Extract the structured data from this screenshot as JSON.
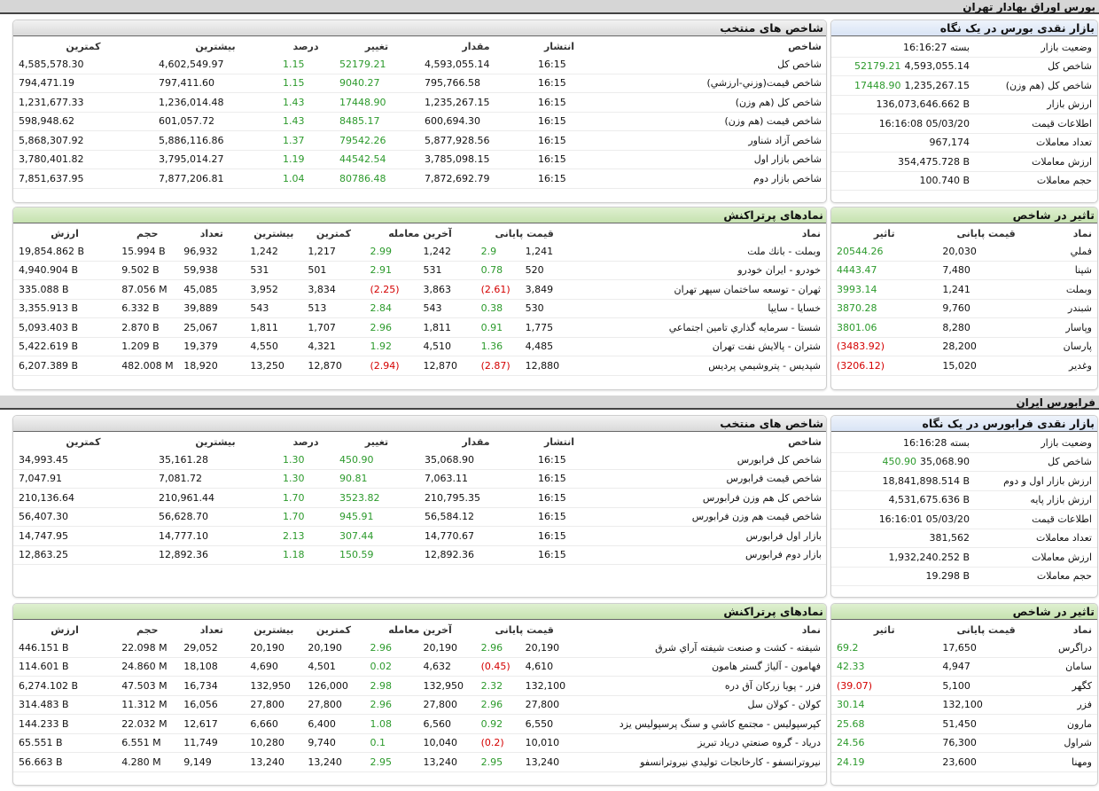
{
  "sections": [
    {
      "title": "بورس اوراق بهادار تهران",
      "glance": {
        "title": "بازار نقدی بورس در یک نگاه",
        "rows": [
          [
            "وضعیت بازار",
            "بسته 16:16:27"
          ],
          [
            "شاخص کل",
            "4,593,055.14",
            "52179.21"
          ],
          [
            "شاخص کل (هم وزن)",
            "1,235,267.15",
            "17448.90"
          ],
          [
            "ارزش بازار",
            "136,073,646.662 B"
          ],
          [
            "اطلاعات قیمت",
            "16:16:08 05/03/20"
          ],
          [
            "تعداد معاملات",
            "967,174"
          ],
          [
            "ارزش معاملات",
            "354,475.728 B"
          ],
          [
            "حجم معاملات",
            "100.740 B"
          ]
        ]
      },
      "indices": {
        "title": "شاخص های منتخب",
        "headers": [
          "شاخص",
          "انتشار",
          "مقدار",
          "تغییر",
          "درصد",
          "بیشترین",
          "کمترین"
        ],
        "rows": [
          [
            "شاخص کل",
            "16:15",
            "4,593,055.14",
            "52179.21",
            "1.15",
            "4,602,549.97",
            "4,585,578.30"
          ],
          [
            "شاخص قیمت(وزني-ارزشي)",
            "16:15",
            "795,766.58",
            "9040.27",
            "1.15",
            "797,411.60",
            "794,471.19"
          ],
          [
            "شاخص کل (هم وزن)",
            "16:15",
            "1,235,267.15",
            "17448.90",
            "1.43",
            "1,236,014.48",
            "1,231,677.33"
          ],
          [
            "شاخص قیمت (هم وزن)",
            "16:15",
            "600,694.30",
            "8485.17",
            "1.43",
            "601,057.72",
            "598,948.62"
          ],
          [
            "شاخص آزاد شناور",
            "16:15",
            "5,877,928.56",
            "79542.26",
            "1.37",
            "5,886,116.86",
            "5,868,307.92"
          ],
          [
            "شاخص بازار اول",
            "16:15",
            "3,785,098.15",
            "44542.54",
            "1.19",
            "3,795,014.27",
            "3,780,401.82"
          ],
          [
            "شاخص بازار دوم",
            "16:15",
            "7,872,692.79",
            "80786.48",
            "1.04",
            "7,877,206.81",
            "7,851,637.95"
          ]
        ]
      },
      "impact": {
        "title": "تاثیر در شاخص",
        "headers": [
          "نماد",
          "قیمت پایانی",
          "تاثیر"
        ],
        "rows": [
          [
            "فملي",
            "20,030",
            "20544.26"
          ],
          [
            "شپنا",
            "7,480",
            "4443.47"
          ],
          [
            "وبملت",
            "1,241",
            "3993.14"
          ],
          [
            "شبندر",
            "9,760",
            "3870.28"
          ],
          [
            "وپاسار",
            "8,280",
            "3801.06"
          ],
          [
            "پارسان",
            "28,200",
            "(3483.92)"
          ],
          [
            "وغدير",
            "15,020",
            "(3206.12)"
          ]
        ]
      },
      "traded": {
        "title": "نمادهای پرتراکنش",
        "headers": [
          "نماد",
          "قیمت پایانی",
          "آخرین معامله",
          "کمترین",
          "بیشترین",
          "تعداد",
          "حجم",
          "ارزش"
        ],
        "rows": [
          [
            "وبملت - بانك ملت",
            "1,241",
            "2.9",
            "1,242",
            "2.99",
            "1,217",
            "1,242",
            "96,932",
            "15.994 B",
            "19,854.862 B"
          ],
          [
            "خودرو - ايران خودرو",
            "520",
            "0.78",
            "531",
            "2.91",
            "501",
            "531",
            "59,938",
            "9.502 B",
            "4,940.904 B"
          ],
          [
            "ثهران - توسعه ساختمان سپهر تهران",
            "3,849",
            "(2.61)",
            "3,863",
            "(2.25)",
            "3,834",
            "3,952",
            "45,085",
            "87.056 M",
            "335.088 B"
          ],
          [
            "خسايا - سايپا",
            "530",
            "0.38",
            "543",
            "2.84",
            "513",
            "543",
            "39,889",
            "6.332 B",
            "3,355.913 B"
          ],
          [
            "شستا - سرمايه گذاري تامين اجتماعي",
            "1,775",
            "0.91",
            "1,811",
            "2.96",
            "1,707",
            "1,811",
            "25,067",
            "2.870 B",
            "5,093.403 B"
          ],
          [
            "شتران - پالايش نفت تهران",
            "4,485",
            "1.36",
            "4,510",
            "1.92",
            "4,321",
            "4,550",
            "19,379",
            "1.209 B",
            "5,422.619 B"
          ],
          [
            "شپديس - پتروشيمي پرديس",
            "12,880",
            "(2.87)",
            "12,870",
            "(2.94)",
            "12,870",
            "13,250",
            "18,920",
            "482.008 M",
            "6,207.389 B"
          ]
        ]
      }
    },
    {
      "title": "فرابورس ایران",
      "glance": {
        "title": "بازار نقدی فرابورس در یک نگاه",
        "rows": [
          [
            "وضعیت بازار",
            "بسته 16:16:28"
          ],
          [
            "شاخص کل",
            "35,068.90",
            "450.90"
          ],
          [
            "ارزش بازار اول و دوم",
            "18,841,898.514 B"
          ],
          [
            "ارزش بازار پایه",
            "4,531,675.636 B"
          ],
          [
            "اطلاعات قیمت",
            "16:16:01 05/03/20"
          ],
          [
            "تعداد معاملات",
            "381,562"
          ],
          [
            "ارزش معاملات",
            "1,932,240.252 B"
          ],
          [
            "حجم معاملات",
            "19.298 B"
          ]
        ]
      },
      "indices": {
        "title": "شاخص های منتخب",
        "headers": [
          "شاخص",
          "انتشار",
          "مقدار",
          "تغییر",
          "درصد",
          "بیشترین",
          "کمترین"
        ],
        "rows": [
          [
            "شاخص کل فرابورس",
            "16:15",
            "35,068.90",
            "450.90",
            "1.30",
            "35,161.28",
            "34,993.45"
          ],
          [
            "شاخص قیمت فرابورس",
            "16:15",
            "7,063.11",
            "90.81",
            "1.30",
            "7,081.72",
            "7,047.91"
          ],
          [
            "شاخص کل هم وزن فرابورس",
            "16:15",
            "210,795.35",
            "3523.82",
            "1.70",
            "210,961.44",
            "210,136.64"
          ],
          [
            "شاخص قیمت هم وزن فرابورس",
            "16:15",
            "56,584.12",
            "945.91",
            "1.70",
            "56,628.70",
            "56,407.30"
          ],
          [
            "بازار اول فرابورس",
            "16:15",
            "14,770.67",
            "307.44",
            "2.13",
            "14,777.10",
            "14,747.95"
          ],
          [
            "بازار دوم فرابورس",
            "16:15",
            "12,892.36",
            "150.59",
            "1.18",
            "12,892.36",
            "12,863.25"
          ]
        ]
      },
      "impact": {
        "title": "تاثیر در شاخص",
        "headers": [
          "نماد",
          "قیمت پایانی",
          "تاثیر"
        ],
        "rows": [
          [
            "دراگرس",
            "17,650",
            "69.2"
          ],
          [
            "سامان",
            "4,947",
            "42.33"
          ],
          [
            "كگهر",
            "5,100",
            "(39.07)"
          ],
          [
            "فزر",
            "132,100",
            "30.14"
          ],
          [
            "مارون",
            "51,450",
            "25.68"
          ],
          [
            "شراول",
            "76,300",
            "24.56"
          ],
          [
            "ومهنا",
            "23,600",
            "24.19"
          ]
        ]
      },
      "traded": {
        "title": "نمادهای پرتراکنش",
        "headers": [
          "نماد",
          "قیمت پایانی",
          "آخرین معامله",
          "کمترین",
          "بیشترین",
          "تعداد",
          "حجم",
          "ارزش"
        ],
        "rows": [
          [
            "شيفته - كشت و صنعت شيفته آراي شرق",
            "20,190",
            "2.96",
            "20,190",
            "2.96",
            "20,190",
            "20,190",
            "29,052",
            "22.098 M",
            "446.151 B"
          ],
          [
            "فهامون - آلياژ گستر هامون",
            "4,610",
            "(0.45)",
            "4,632",
            "0.02",
            "4,501",
            "4,690",
            "18,108",
            "24.860 M",
            "114.601 B"
          ],
          [
            "فزر - پويا زركان آق دره",
            "132,100",
            "2.32",
            "132,950",
            "2.98",
            "126,000",
            "132,950",
            "16,734",
            "47.503 M",
            "6,274.102 B"
          ],
          [
            "كولان - كولان سل",
            "27,800",
            "2.96",
            "27,800",
            "2.96",
            "27,800",
            "27,800",
            "16,056",
            "11.312 M",
            "314.483 B"
          ],
          [
            "كپرسپوليس - مجتمع كاشي و سنگ پرسپوليس يزد",
            "6,550",
            "0.92",
            "6,560",
            "1.08",
            "6,400",
            "6,660",
            "12,617",
            "22.032 M",
            "144.233 B"
          ],
          [
            "درياد - گروه صنعتي درياد تبريز",
            "10,010",
            "(0.2)",
            "10,040",
            "0.1",
            "9,740",
            "10,280",
            "11,749",
            "6.551 M",
            "65.551 B"
          ],
          [
            "نيروترانسفو - كارخانجات توليدي نيروترانسفو",
            "13,240",
            "2.95",
            "13,240",
            "2.95",
            "13,240",
            "13,240",
            "9,149",
            "4.280 M",
            "56.663 B"
          ]
        ]
      }
    }
  ]
}
